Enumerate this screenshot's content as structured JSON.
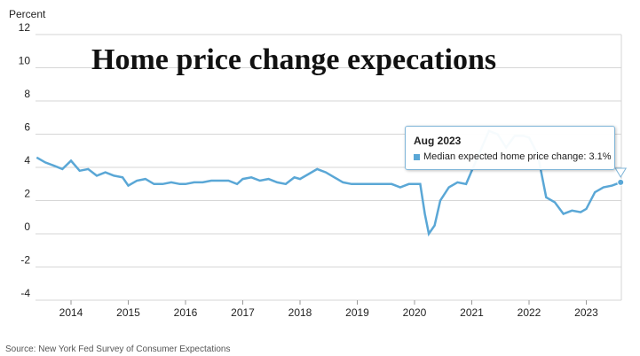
{
  "chart_data": {
    "type": "line",
    "title": "Home price change expecations",
    "ylabel": "Percent",
    "xlabel": "",
    "ylim": [
      -4,
      12
    ],
    "y_ticks": [
      12,
      10,
      8,
      6,
      4,
      2,
      0,
      -2,
      -4
    ],
    "x_ticks": [
      "2014",
      "2015",
      "2016",
      "2017",
      "2018",
      "2019",
      "2020",
      "2021",
      "2022",
      "2023"
    ],
    "grid": "horizontal",
    "line_color": "#5aa7d6",
    "source": "Source: New York Fed Survey of Consumer Expectations",
    "tooltip": {
      "title": "Aug 2023",
      "label": "Median expected home price change: 3.1%"
    },
    "series": [
      {
        "x": [
          2013.4,
          2013.55,
          2013.7,
          2013.85,
          2014.0,
          2014.15,
          2014.3,
          2014.45,
          2014.6,
          2014.75,
          2014.9,
          2015.0,
          2015.15,
          2015.3,
          2015.45,
          2015.6,
          2015.75,
          2015.9,
          2016.0,
          2016.15,
          2016.3,
          2016.45,
          2016.6,
          2016.75,
          2016.9,
          2017.0,
          2017.15,
          2017.3,
          2017.45,
          2017.6,
          2017.75,
          2017.9,
          2018.0,
          2018.15,
          2018.3,
          2018.45,
          2018.6,
          2018.75,
          2018.9,
          2019.0,
          2019.15,
          2019.3,
          2019.45,
          2019.6,
          2019.75,
          2019.9,
          2020.0,
          2020.1,
          2020.18,
          2020.25,
          2020.35,
          2020.45,
          2020.6,
          2020.75,
          2020.9,
          2021.0,
          2021.15,
          2021.3,
          2021.45,
          2021.6,
          2021.75,
          2021.9,
          2022.0,
          2022.15,
          2022.3,
          2022.45,
          2022.6,
          2022.75,
          2022.9,
          2023.0,
          2023.15,
          2023.3,
          2023.45,
          2023.6
        ],
        "y": [
          4.6,
          4.3,
          4.1,
          3.9,
          4.4,
          3.8,
          3.9,
          3.5,
          3.7,
          3.5,
          3.4,
          2.9,
          3.2,
          3.3,
          3.0,
          3.0,
          3.1,
          3.0,
          3.0,
          3.1,
          3.1,
          3.2,
          3.2,
          3.2,
          3.0,
          3.3,
          3.4,
          3.2,
          3.3,
          3.1,
          3.0,
          3.4,
          3.3,
          3.6,
          3.9,
          3.7,
          3.4,
          3.1,
          3.0,
          3.0,
          3.0,
          3.0,
          3.0,
          3.0,
          2.8,
          3.0,
          3.0,
          3.0,
          1.2,
          0.0,
          0.5,
          2.0,
          2.8,
          3.1,
          3.0,
          3.8,
          5.0,
          6.2,
          6.0,
          5.2,
          5.9,
          5.9,
          5.8,
          4.8,
          2.2,
          1.9,
          1.2,
          1.4,
          1.3,
          1.5,
          2.5,
          2.8,
          2.9,
          3.1
        ]
      }
    ]
  }
}
